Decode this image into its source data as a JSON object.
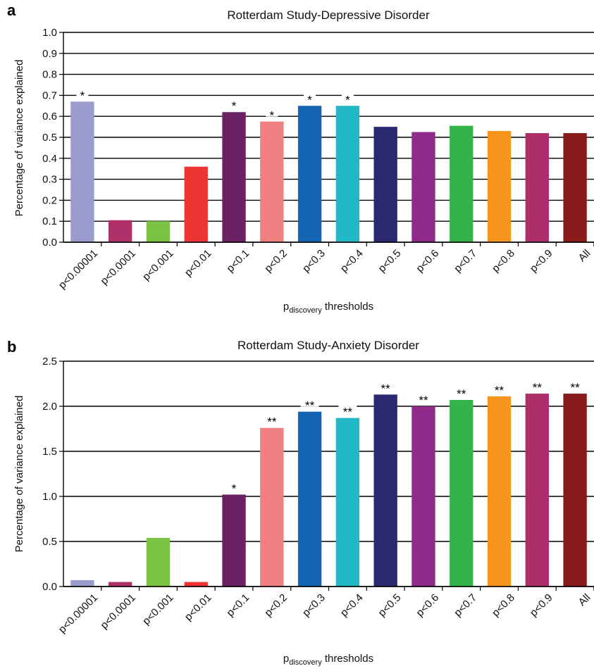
{
  "chart_data": [
    {
      "panel": "a",
      "type": "bar",
      "title": "Rotterdam Study-Depressive Disorder",
      "ylabel": "Percentage of variance explained",
      "xlabel_main": "p",
      "xlabel_sub": "discovery",
      "xlabel_tail": " thresholds",
      "ylim": [
        0,
        1.0
      ],
      "yticks": [
        "0.0",
        "0.1",
        "0.2",
        "0.3",
        "0.4",
        "0.5",
        "0.6",
        "0.7",
        "0.8",
        "0.9",
        "1.0"
      ],
      "grid": true,
      "categories": [
        "p<0.00001",
        "p<0.0001",
        "p<0.001",
        "p<0.01",
        "p<0.1",
        "p<0.2",
        "p<0.3",
        "p<0.4",
        "p<0.5",
        "p<0.6",
        "p<0.7",
        "p<0.8",
        "p<0.9",
        "All"
      ],
      "values": [
        0.67,
        0.105,
        0.1,
        0.36,
        0.62,
        0.575,
        0.65,
        0.65,
        0.55,
        0.525,
        0.555,
        0.53,
        0.52,
        0.52
      ],
      "significance": [
        "*",
        "",
        "",
        "",
        "*",
        "*",
        "*",
        "*",
        "",
        "",
        "",
        "",
        "",
        ""
      ],
      "colors": [
        "#9b9bcd",
        "#b0306a",
        "#7cc242",
        "#ee3333",
        "#6a2164",
        "#f08080",
        "#1565b3",
        "#1fb8c4",
        "#2b2a70",
        "#8e2b8b",
        "#33b44a",
        "#f7941d",
        "#ad2e6b",
        "#8b1a1a"
      ]
    },
    {
      "panel": "b",
      "type": "bar",
      "title": "Rotterdam Study-Anxiety Disorder",
      "ylabel": "Percentage of variance explained",
      "xlabel_main": "p",
      "xlabel_sub": "discovery",
      "xlabel_tail": " thresholds",
      "ylim": [
        0,
        2.5
      ],
      "yticks": [
        "0.0",
        "0.5",
        "1.0",
        "1.5",
        "2.0",
        "2.5"
      ],
      "grid": true,
      "categories": [
        "p<0.00001",
        "p<0.0001",
        "p<0.001",
        "p<0.01",
        "p<0.1",
        "p<0.2",
        "p<0.3",
        "p<0.4",
        "p<0.5",
        "p<0.6",
        "p<0.7",
        "p<0.8",
        "p<0.9",
        "All"
      ],
      "values": [
        0.07,
        0.05,
        0.54,
        0.05,
        1.02,
        1.76,
        1.94,
        1.87,
        2.13,
        2.0,
        2.07,
        2.11,
        2.14,
        2.14
      ],
      "significance": [
        "",
        "",
        "",
        "",
        "*",
        "**",
        "**",
        "**",
        "**",
        "**",
        "**",
        "**",
        "**",
        "**"
      ],
      "colors": [
        "#9b9bcd",
        "#b0306a",
        "#7cc242",
        "#ee3333",
        "#6a2164",
        "#f08080",
        "#1565b3",
        "#1fb8c4",
        "#2b2a70",
        "#8e2b8b",
        "#33b44a",
        "#f7941d",
        "#ad2e6b",
        "#8b1a1a"
      ]
    }
  ]
}
